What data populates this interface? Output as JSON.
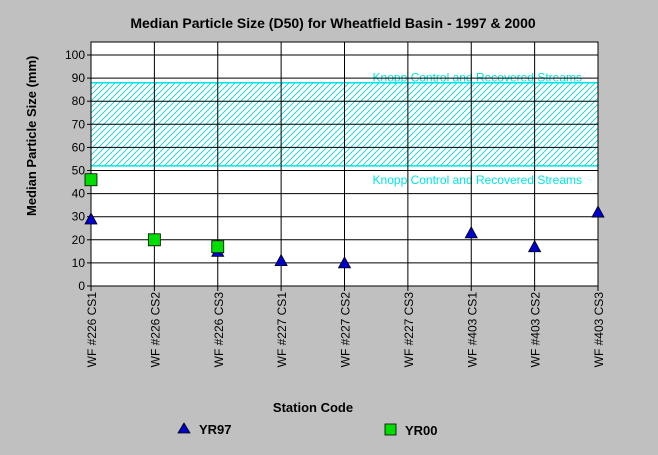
{
  "chart_data": {
    "type": "scatter",
    "title": "Median Particle Size (D50) for Wheatfield Basin - 1997 & 2000",
    "xlabel": "Station Code",
    "ylabel": "Median Particle Size (mm)",
    "ylim": [
      0,
      100
    ],
    "yticks": [
      0,
      10,
      20,
      30,
      40,
      50,
      60,
      70,
      80,
      90,
      100
    ],
    "grid": true,
    "categories": [
      "WF #226 CS1",
      "WF #226 CS2",
      "WF #226 CS3",
      "WF #227 CS1",
      "WF #227 CS2",
      "WF #227 CS3",
      "WF #403 CS1",
      "WF #403 CS2",
      "WF #403 CS3"
    ],
    "series": [
      {
        "name": "YR97",
        "marker": "triangle",
        "color": "#0000cc",
        "values": [
          29,
          null,
          15,
          11,
          10,
          null,
          23,
          17,
          32
        ]
      },
      {
        "name": "YR00",
        "marker": "square",
        "color": "#00dd00",
        "values": [
          46,
          20,
          17,
          null,
          null,
          null,
          null,
          null,
          null
        ]
      }
    ],
    "reference_band": {
      "low": 52,
      "high": 88,
      "label_top": "Knopp Control and Recovered Streams",
      "label_bottom": "Knopp Control and Recovered Streams",
      "color": "#00e5e5"
    },
    "legend_position": "bottom"
  }
}
